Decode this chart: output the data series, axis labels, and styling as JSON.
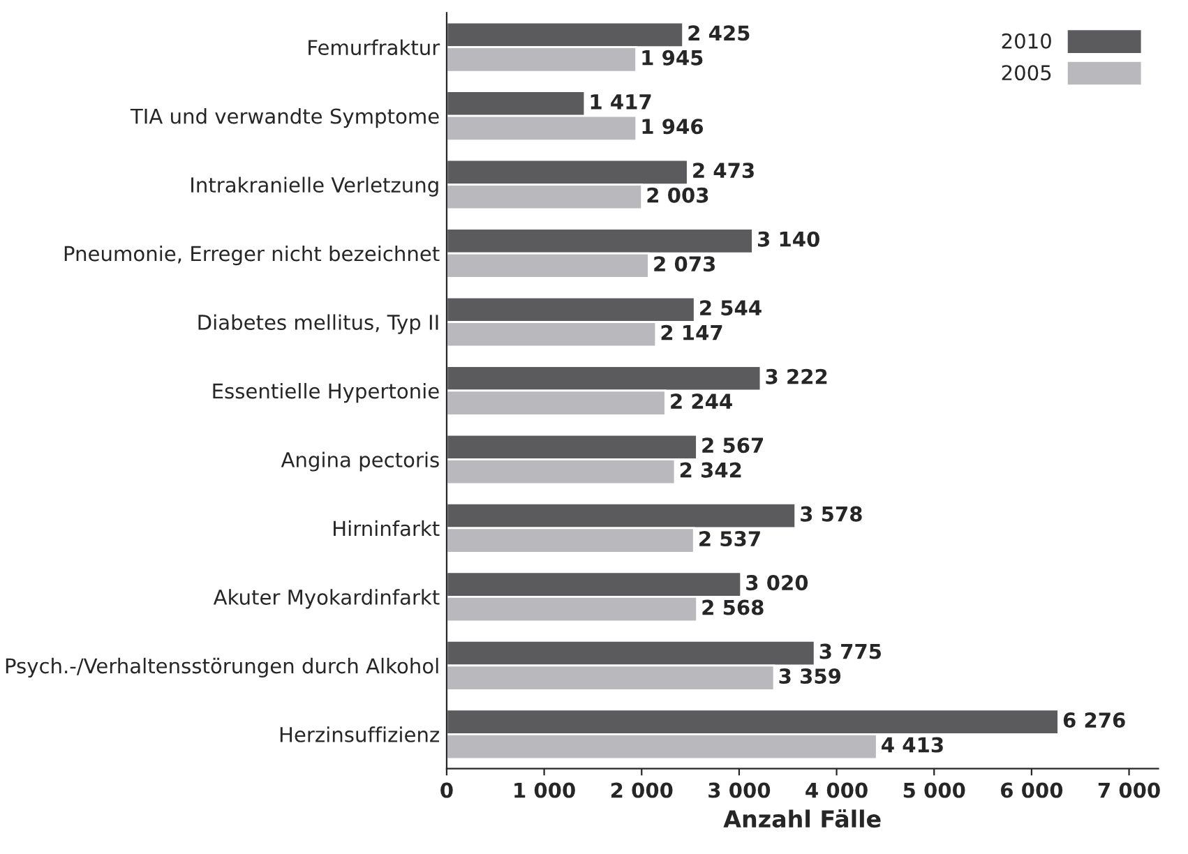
{
  "chart_data": {
    "type": "bar",
    "orientation": "horizontal",
    "xlabel": "Anzahl Fälle",
    "categories": [
      "Femurfraktur",
      "TIA und verwandte Symptome",
      "Intrakranielle Verletzung",
      "Pneumonie, Erreger nicht bezeichnet",
      "Diabetes mellitus, Typ II",
      "Essentielle Hypertonie",
      "Angina pectoris",
      "Hirninfarkt",
      "Akuter Myokardinfarkt",
      "Psych.-/Verhaltensstörungen durch Alkohol",
      "Herzinsuffizienz"
    ],
    "series": [
      {
        "name": "2010",
        "color": "#5b5b5d",
        "values": [
          2425,
          1417,
          2473,
          3140,
          2544,
          3222,
          2567,
          3578,
          3020,
          3775,
          6276
        ],
        "value_labels": [
          "2 425",
          "1 417",
          "2 473",
          "3 140",
          "2 544",
          "3 222",
          "2 567",
          "3 578",
          "3 020",
          "3 775",
          "6 276"
        ]
      },
      {
        "name": "2005",
        "color": "#b9b9bd",
        "values": [
          1945,
          1946,
          2003,
          2073,
          2147,
          2244,
          2342,
          2537,
          2568,
          3359,
          4413
        ],
        "value_labels": [
          "1 945",
          "1 946",
          "2 003",
          "2 073",
          "2 147",
          "2 244",
          "2 342",
          "2 537",
          "2 568",
          "3 359",
          "4 413"
        ]
      }
    ],
    "xlim": [
      0,
      7300
    ],
    "xticks": [
      0,
      {
        "value": 1000,
        "label": "1 000"
      },
      {
        "value": 2000,
        "label": "2 000"
      },
      {
        "value": 3000,
        "label": "3 000"
      },
      {
        "value": 4000,
        "label": "4 000"
      },
      {
        "value": 5000,
        "label": "5 000"
      },
      {
        "value": 6000,
        "label": "6 000"
      },
      {
        "value": 7000,
        "label": "7 000"
      }
    ],
    "grid": false,
    "legend": "top right"
  }
}
